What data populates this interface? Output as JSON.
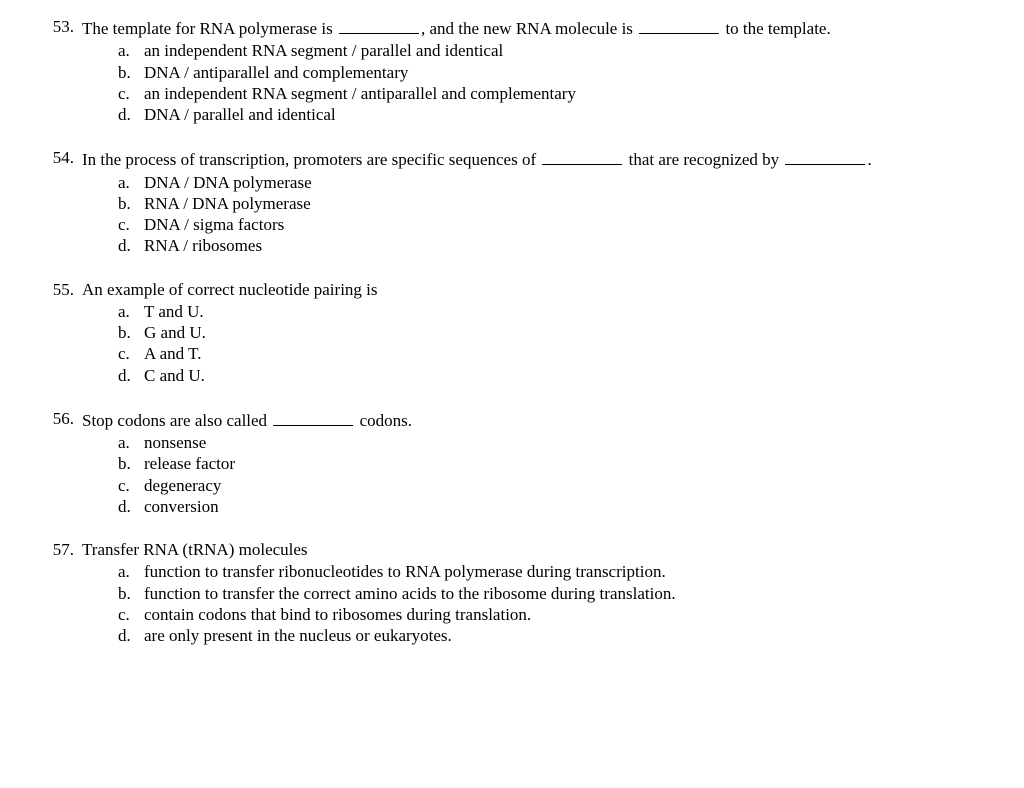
{
  "questions": [
    {
      "number": "53.",
      "stem_parts": [
        "The template for RNA polymerase is ",
        "__BLANK__",
        ", and the new RNA molecule is ",
        "__BLANK__",
        " to the template."
      ],
      "options": [
        {
          "letter": "a.",
          "text": "an independent RNA segment / parallel and identical"
        },
        {
          "letter": "b.",
          "text": "DNA / antiparallel and complementary"
        },
        {
          "letter": "c.",
          "text": "an independent RNA segment / antiparallel and complementary"
        },
        {
          "letter": "d.",
          "text": "DNA / parallel and identical"
        }
      ]
    },
    {
      "number": "54.",
      "stem_parts": [
        "In the process of transcription, promoters are specific sequences of ",
        "__BLANK__",
        " that are recognized by ",
        "__BLANK__",
        "."
      ],
      "options": [
        {
          "letter": "a.",
          "text": "DNA / DNA polymerase"
        },
        {
          "letter": "b.",
          "text": "RNA / DNA polymerase"
        },
        {
          "letter": "c.",
          "text": "DNA / sigma factors"
        },
        {
          "letter": "d.",
          "text": "RNA / ribosomes"
        }
      ]
    },
    {
      "number": "55.",
      "stem_parts": [
        "An example of correct nucleotide pairing is"
      ],
      "options": [
        {
          "letter": "a.",
          "text": "T and U."
        },
        {
          "letter": "b.",
          "text": "G and U."
        },
        {
          "letter": "c.",
          "text": "A and T."
        },
        {
          "letter": "d.",
          "text": "C and U."
        }
      ]
    },
    {
      "number": "56.",
      "stem_parts": [
        "Stop codons are also called ",
        "__BLANK__",
        " codons."
      ],
      "options": [
        {
          "letter": "a.",
          "text": "nonsense"
        },
        {
          "letter": "b.",
          "text": "release factor"
        },
        {
          "letter": "c.",
          "text": "degeneracy"
        },
        {
          "letter": "d.",
          "text": "conversion"
        }
      ]
    },
    {
      "number": "57.",
      "stem_parts": [
        "Transfer RNA (tRNA) molecules"
      ],
      "options": [
        {
          "letter": "a.",
          "text": "function to transfer ribonucleotides to RNA polymerase during transcription."
        },
        {
          "letter": "b.",
          "text": "function to transfer the correct amino acids to the ribosome during translation."
        },
        {
          "letter": "c.",
          "text": "contain codons that bind to ribosomes during translation."
        },
        {
          "letter": "d.",
          "text": "are only present in the nucleus or eukaryotes."
        }
      ]
    }
  ]
}
